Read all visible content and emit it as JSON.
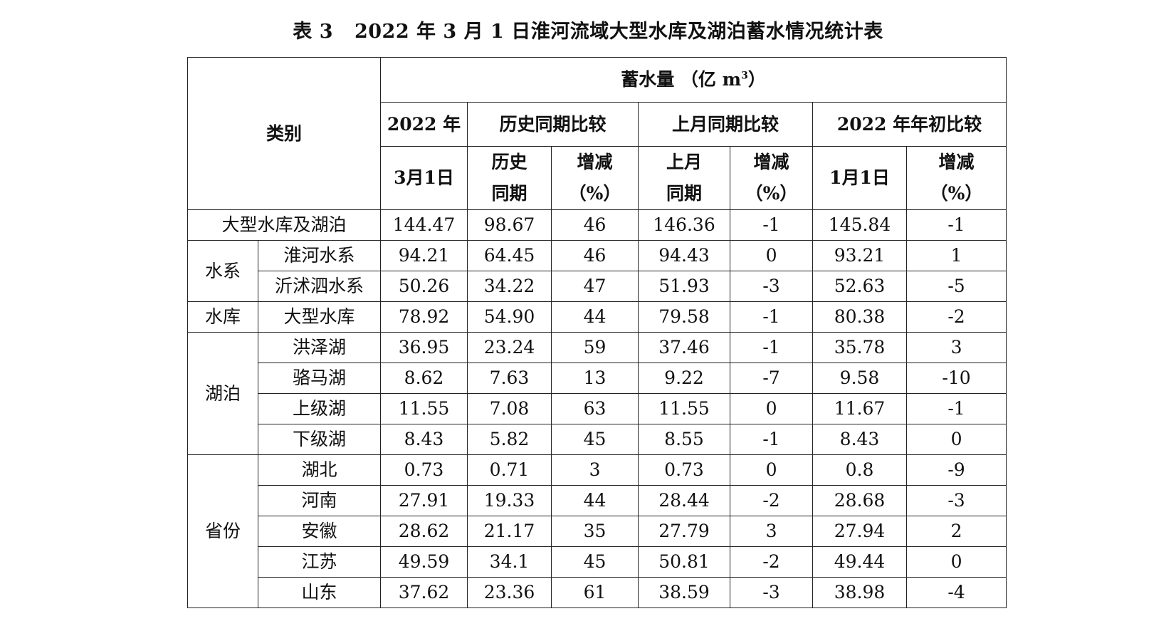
{
  "title": {
    "number": "表 3",
    "text": "2022 年 3 月 1 日淮河流域大型水库及湖泊蓄水情况统计表"
  },
  "header": {
    "category": "类别",
    "storage_prefix": "蓄水量 （亿 m",
    "storage_sup": "3",
    "storage_suffix": "）",
    "col_2022": "2022 年",
    "col_hist": "历史同期比较",
    "col_prev": "上月同期比较",
    "col_begin": "2022 年年初比较",
    "sub_mar1": "3月1日",
    "sub_hist_a": "历史",
    "sub_hist_b": "同期",
    "sub_chg_a": "增减",
    "sub_chg_b": "（%）",
    "sub_prev_a": "上月",
    "sub_prev_b": "同期",
    "sub_jan1": "1月1日"
  },
  "groups": {
    "water_system": "水系",
    "reservoir": "水库",
    "lake": "湖泊",
    "province": "省份"
  },
  "rows": [
    {
      "name": "大型水库及湖泊",
      "v": [
        "144.47",
        "98.67",
        "46",
        "146.36",
        "-1",
        "145.84",
        "-1"
      ]
    },
    {
      "name": "淮河水系",
      "v": [
        "94.21",
        "64.45",
        "46",
        "94.43",
        "0",
        "93.21",
        "1"
      ]
    },
    {
      "name": "沂沭泗水系",
      "v": [
        "50.26",
        "34.22",
        "47",
        "51.93",
        "-3",
        "52.63",
        "-5"
      ]
    },
    {
      "name": "大型水库",
      "v": [
        "78.92",
        "54.90",
        "44",
        "79.58",
        "-1",
        "80.38",
        "-2"
      ]
    },
    {
      "name": "洪泽湖",
      "v": [
        "36.95",
        "23.24",
        "59",
        "37.46",
        "-1",
        "35.78",
        "3"
      ]
    },
    {
      "name": "骆马湖",
      "v": [
        "8.62",
        "7.63",
        "13",
        "9.22",
        "-7",
        "9.58",
        "-10"
      ]
    },
    {
      "name": "上级湖",
      "v": [
        "11.55",
        "7.08",
        "63",
        "11.55",
        "0",
        "11.67",
        "-1"
      ]
    },
    {
      "name": "下级湖",
      "v": [
        "8.43",
        "5.82",
        "45",
        "8.55",
        "-1",
        "8.43",
        "0"
      ]
    },
    {
      "name": "湖北",
      "v": [
        "0.73",
        "0.71",
        "3",
        "0.73",
        "0",
        "0.8",
        "-9"
      ]
    },
    {
      "name": "河南",
      "v": [
        "27.91",
        "19.33",
        "44",
        "28.44",
        "-2",
        "28.68",
        "-3"
      ]
    },
    {
      "name": "安徽",
      "v": [
        "28.62",
        "21.17",
        "35",
        "27.79",
        "3",
        "27.94",
        "2"
      ]
    },
    {
      "name": "江苏",
      "v": [
        "49.59",
        "34.1",
        "45",
        "50.81",
        "-2",
        "49.44",
        "0"
      ]
    },
    {
      "name": "山东",
      "v": [
        "37.62",
        "23.36",
        "61",
        "38.59",
        "-3",
        "38.98",
        "-4"
      ]
    }
  ]
}
